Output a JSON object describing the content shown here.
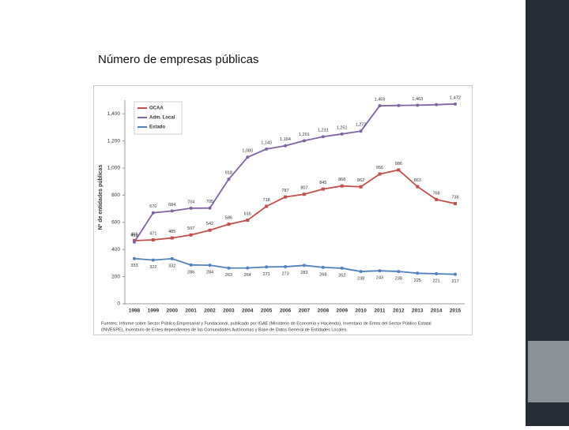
{
  "chart_data": {
    "type": "line",
    "title": "Número de empresas públicas",
    "y_label": "Nº de entidades públicas",
    "source": [
      "Fuentes: Informe sobre Sector Público Empresarial y Fundacional, publicado por IGAE (Ministerio de Economía y Hacienda), Inventario de Entes del Sector Público Estatal",
      "(INVESPE), Inventario de Entes dependientes de las Comunidades Autónomas y Base de Datos General de Entidades Locales."
    ],
    "categories": [
      "1998",
      "1999",
      "2000",
      "2001",
      "2002",
      "2003",
      "2004",
      "2005",
      "2006",
      "2007",
      "2008",
      "2009",
      "2010",
      "2011",
      "2012",
      "2013",
      "2014",
      "2015"
    ],
    "series": [
      {
        "name": "OCAA",
        "color": "#c0504d",
        "label_side": "above",
        "values": [
          465,
          471,
          485,
          507,
          542,
          586,
          616,
          718,
          787,
          807,
          845,
          868,
          862,
          956,
          986,
          863,
          768,
          738
        ]
      },
      {
        "name": "Adm. Local",
        "color": "#8064a2",
        "label_side": "above",
        "values": [
          455,
          670,
          684,
          704,
          705,
          918,
          1080,
          1140,
          1164,
          1201,
          1231,
          1251,
          1272,
          1459,
          1461,
          1463,
          1467,
          1472
        ],
        "value_labels": [
          "455",
          "670",
          "684",
          "704",
          "705",
          "918",
          "1,080",
          "1,140",
          "1,164",
          "1,201",
          "1,231",
          "1,251",
          "1,272",
          "1,459",
          null,
          "1,463",
          null,
          "1,472"
        ]
      },
      {
        "name": "Estado",
        "color": "#4f81bd",
        "label_side": "below",
        "values": [
          333,
          322,
          332,
          286,
          284,
          263,
          264,
          271,
          273,
          283,
          268,
          262,
          238,
          243,
          238,
          225,
          221,
          217
        ]
      }
    ],
    "ylim": [
      0,
      1500
    ],
    "yticks": [
      0,
      200,
      400,
      600,
      800,
      {
        "value": 1000,
        "label": "1,000"
      },
      {
        "value": 1200,
        "label": "1,200"
      },
      {
        "value": 1400,
        "label": "1,400"
      }
    ],
    "grid": false,
    "legend": "top-left"
  }
}
